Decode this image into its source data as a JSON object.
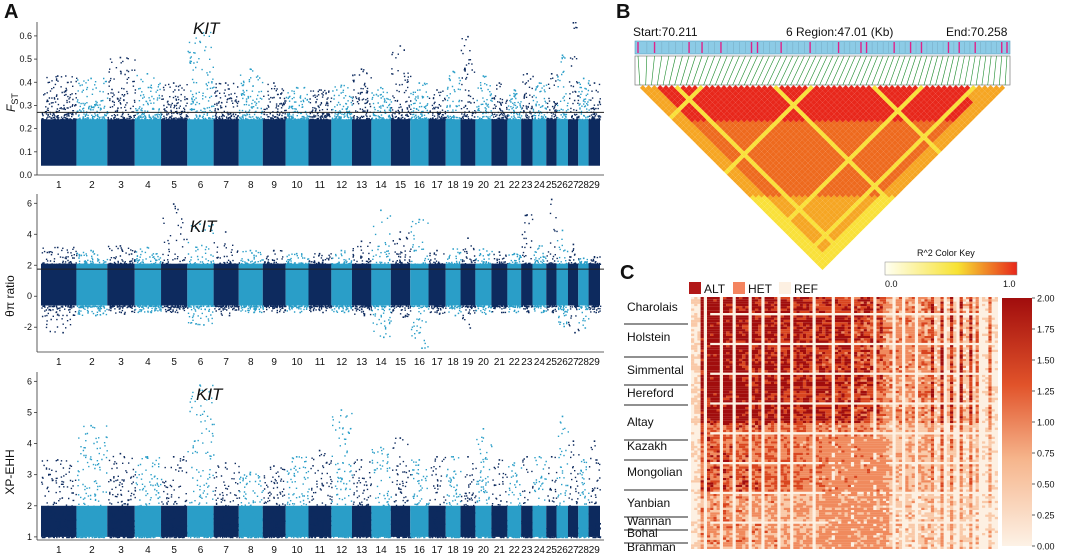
{
  "figure": {
    "panel_labels": [
      "A",
      "B",
      "C"
    ]
  },
  "colors": {
    "dark": "#0d2a5e",
    "light": "#2a9ec8",
    "axis": "#333333",
    "threshold": "#222222",
    "region_bar": "#8ccbe6",
    "snp_tick": "#e0218a",
    "connector": "#1a8a2a",
    "ld_low": "#fffde0",
    "ld_mid": "#f7e233",
    "ld_high": "#e8271b",
    "alt": "#b21818",
    "het": "#f4845f",
    "ref": "#fdf0e2"
  },
  "chart_data": [
    {
      "id": "fst",
      "type": "scatter",
      "title": "",
      "gene_label": "KIT",
      "ylabel_main": "F",
      "ylabel_sub": "ST",
      "xlabel": "",
      "ylim": [
        0.0,
        0.66
      ],
      "yticks": [
        "0.0",
        "0.1",
        "0.2",
        "0.3",
        "0.4",
        "0.5",
        "0.6"
      ],
      "ytick_values": [
        0.0,
        0.1,
        0.2,
        0.3,
        0.4,
        0.5,
        0.6
      ],
      "threshold": 0.27,
      "chromosomes": [
        "1",
        "2",
        "3",
        "4",
        "5",
        "6",
        "7",
        "8",
        "9",
        "10",
        "11",
        "12",
        "13",
        "14",
        "15",
        "16",
        "17",
        "18",
        "19",
        "20",
        "21",
        "22",
        "23",
        "24",
        "25",
        "26",
        "27",
        "28",
        "29"
      ],
      "peaks": [
        0.43,
        0.42,
        0.51,
        0.44,
        0.4,
        0.63,
        0.4,
        0.46,
        0.4,
        0.38,
        0.37,
        0.39,
        0.46,
        0.38,
        0.56,
        0.4,
        0.37,
        0.45,
        0.6,
        0.43,
        0.4,
        0.37,
        0.44,
        0.4,
        0.44,
        0.52,
        0.66,
        0.42,
        0.4
      ],
      "base": [
        0.04,
        0.24
      ]
    },
    {
      "id": "theta",
      "type": "scatter",
      "title": "",
      "gene_label": "KIT",
      "ylabel_main": "θπ ratio",
      "ylabel_sub": "",
      "xlabel": "",
      "ylim": [
        -3.6,
        6.6
      ],
      "yticks": [
        "-2",
        "0",
        "2",
        "4",
        "6"
      ],
      "ytick_values": [
        -2,
        0,
        2,
        4,
        6
      ],
      "threshold": 1.75,
      "chromosomes": [
        "1",
        "2",
        "3",
        "4",
        "5",
        "6",
        "7",
        "8",
        "9",
        "10",
        "11",
        "12",
        "13",
        "14",
        "15",
        "16",
        "17",
        "18",
        "19",
        "20",
        "21",
        "22",
        "23",
        "24",
        "25",
        "26",
        "27",
        "28",
        "29"
      ],
      "peaks": [
        3.2,
        3.0,
        3.3,
        3.2,
        6.0,
        4.7,
        4.2,
        3.0,
        3.0,
        2.8,
        2.8,
        3.0,
        3.6,
        5.6,
        4.2,
        5.0,
        3.0,
        3.1,
        3.8,
        3.1,
        2.9,
        2.8,
        5.3,
        3.3,
        6.3,
        4.3,
        3.4,
        2.5,
        2.6
      ],
      "troughs": [
        -2.3,
        -1.2,
        -1.1,
        -1.0,
        -1.0,
        -1.8,
        -1.2,
        -1.0,
        -1.0,
        -1.0,
        -1.0,
        -1.0,
        -1.2,
        -2.6,
        -1.3,
        -3.3,
        -1.1,
        -1.2,
        -2.0,
        -1.1,
        -1.0,
        -1.0,
        -1.0,
        -1.0,
        -1.0,
        -1.9,
        -2.3,
        -2.0,
        -1.0
      ],
      "base": [
        -0.6,
        2.1
      ]
    },
    {
      "id": "xpehh",
      "type": "scatter",
      "title": "",
      "gene_label": "KIT",
      "ylabel_main": "XP-EHH",
      "ylabel_sub": "",
      "xlabel": "",
      "ylim": [
        0.9,
        6.3
      ],
      "yticks": [
        "1",
        "2",
        "3",
        "4",
        "5",
        "6"
      ],
      "ytick_values": [
        1,
        2,
        3,
        4,
        5,
        6
      ],
      "threshold": null,
      "chromosomes": [
        "1",
        "2",
        "3",
        "4",
        "5",
        "6",
        "7",
        "8",
        "9",
        "10",
        "11",
        "12",
        "13",
        "14",
        "15",
        "16",
        "17",
        "18",
        "19",
        "20",
        "21",
        "22",
        "23",
        "24",
        "25",
        "26",
        "27",
        "28",
        "29"
      ],
      "peaks": [
        3.5,
        4.6,
        3.7,
        3.6,
        3.6,
        5.9,
        3.4,
        3.1,
        3.3,
        3.6,
        3.8,
        5.1,
        3.5,
        3.9,
        4.2,
        3.5,
        3.6,
        3.6,
        3.6,
        4.5,
        3.5,
        3.4,
        3.6,
        3.6,
        3.6,
        4.9,
        4.1,
        3.5,
        4.1
      ],
      "base": [
        1.0,
        2.0
      ]
    },
    {
      "id": "ld",
      "type": "heatmap",
      "title": "6 Region:47.01 (Kb)",
      "start_label": "Start:70.211",
      "end_label": "End:70.258",
      "region_start": 70.211,
      "region_end": 70.258,
      "region_kb": 47.01,
      "color_key_title": "R^2 Color Key",
      "color_key_min": "0.0",
      "color_key_max": "1.0",
      "n_snps": 64,
      "r2_range": [
        0.0,
        1.0
      ]
    },
    {
      "id": "genotype",
      "type": "heatmap",
      "title": "",
      "legend": [
        "ALT",
        "HET",
        "REF"
      ],
      "breeds": [
        "Charolais",
        "Holstein",
        "Simmental",
        "Hereford",
        "Altay",
        "Kazakh",
        "Mongolian",
        "Yanbian",
        "Wannan",
        "Bohai",
        "Brahman"
      ],
      "colorbar_ticks": [
        "0.00",
        "0.25",
        "0.50",
        "0.75",
        "1.00",
        "1.25",
        "1.50",
        "1.75",
        "2.00"
      ],
      "colorbar_values": [
        0.0,
        0.25,
        0.5,
        0.75,
        1.0,
        1.25,
        1.5,
        1.75,
        2.0
      ],
      "value_range": [
        0.0,
        2.0
      ]
    }
  ]
}
